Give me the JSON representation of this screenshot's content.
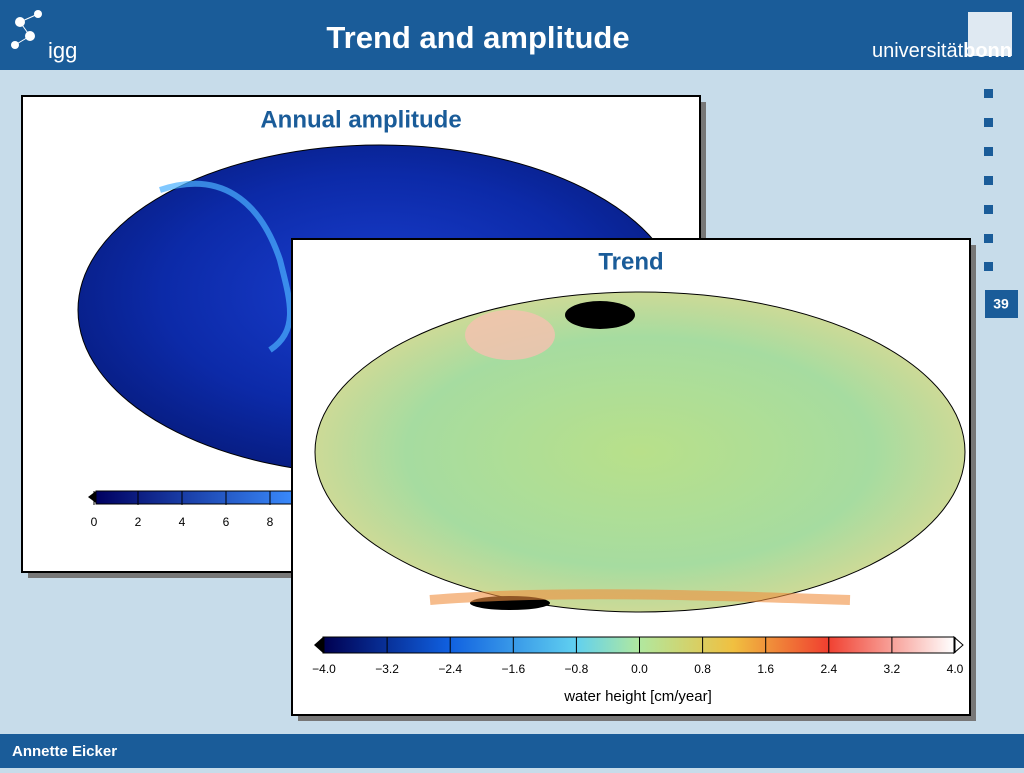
{
  "header": {
    "title": "Trend and amplitude",
    "logo_left": "igg",
    "logo_right_light": "universität",
    "logo_right_bold": "bonn"
  },
  "page_number": "39",
  "footer": {
    "author": "Annette Eicker"
  },
  "panels": [
    {
      "title": "Annual amplitude",
      "colorbar_ticks": [
        "0",
        "2",
        "4",
        "6",
        "8"
      ]
    },
    {
      "title": "Trend",
      "colorbar_ticks": [
        "−4.0",
        "−3.2",
        "−2.4",
        "−1.6",
        "−0.8",
        "0.0",
        "0.8",
        "1.6",
        "2.4",
        "3.2",
        "4.0"
      ],
      "colorbar_label": "water height [cm/year]"
    }
  ]
}
